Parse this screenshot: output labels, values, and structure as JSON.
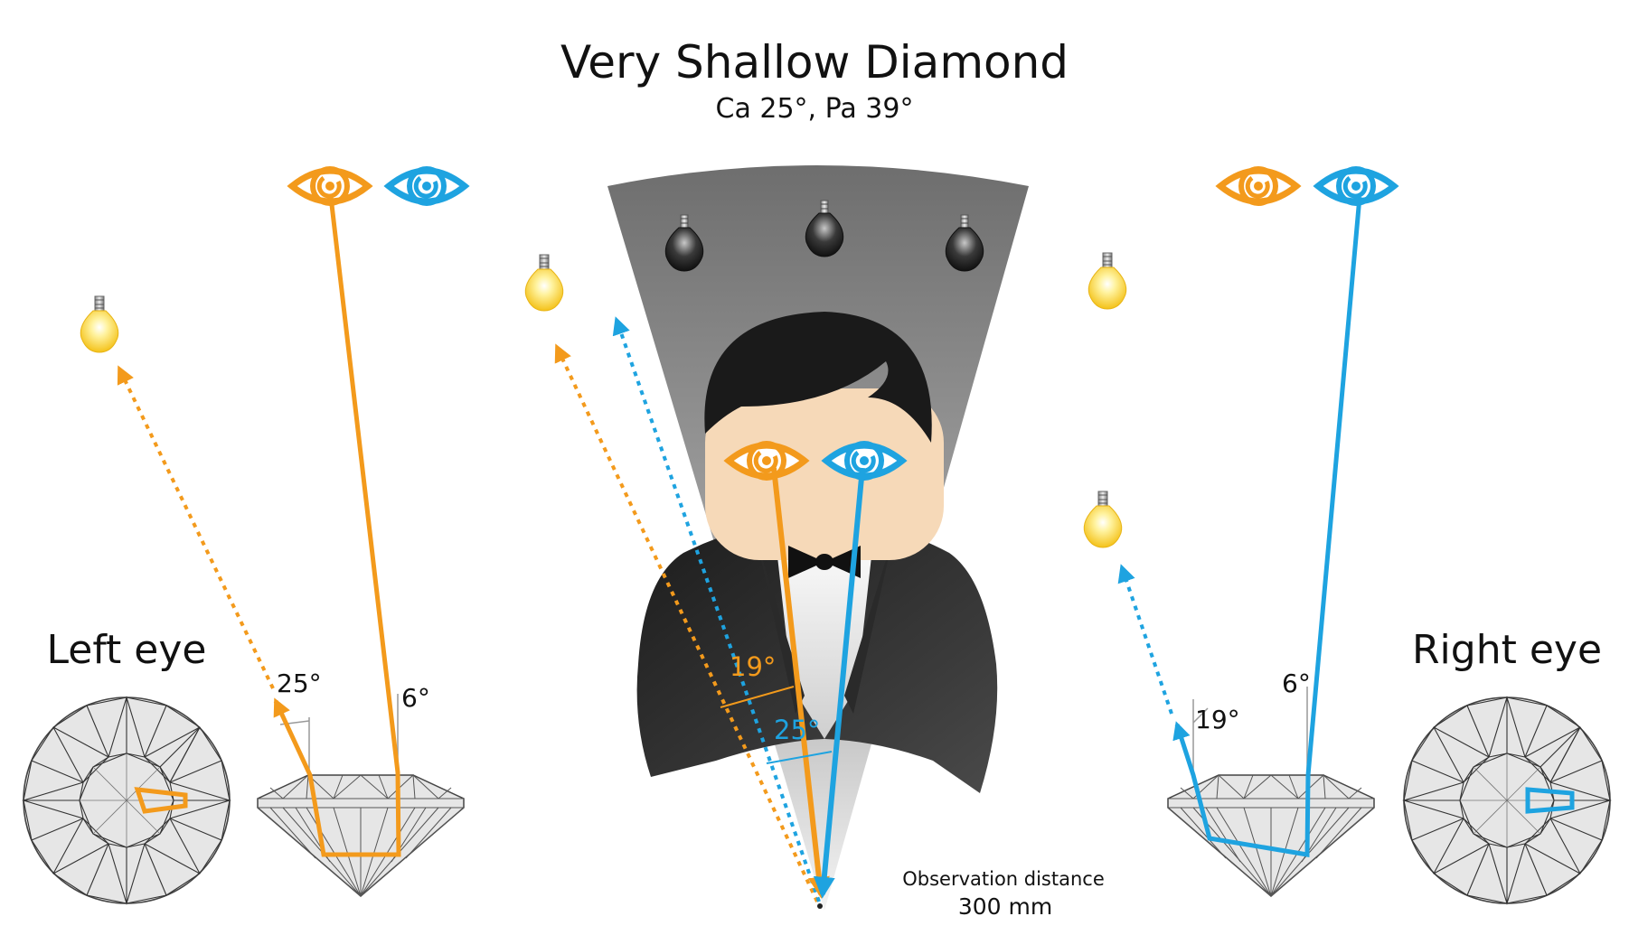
{
  "title": "Very Shallow Diamond",
  "subtitle": "Ca 25°, Pa 39°",
  "left_label": "Left eye",
  "right_label": "Right eye",
  "angles": {
    "left_return": "25°",
    "left_in": "6°",
    "center_orange": "19°",
    "center_blue": "25°",
    "right_return": "19°",
    "right_in": "6°"
  },
  "observation_label": "Observation distance",
  "observation_value": "300 mm",
  "colors": {
    "orange": "#f39a1c",
    "blue": "#1ea3e0",
    "skin": "#f6d9b8",
    "dark": "#2b2b2b",
    "bulb": "#ffe24a",
    "facet_fill": "#e2e2e2"
  },
  "icons": [
    "eye-icon",
    "bulb-icon",
    "diamond-profile",
    "diamond-top-view",
    "observer-figure",
    "bowtie-icon"
  ]
}
